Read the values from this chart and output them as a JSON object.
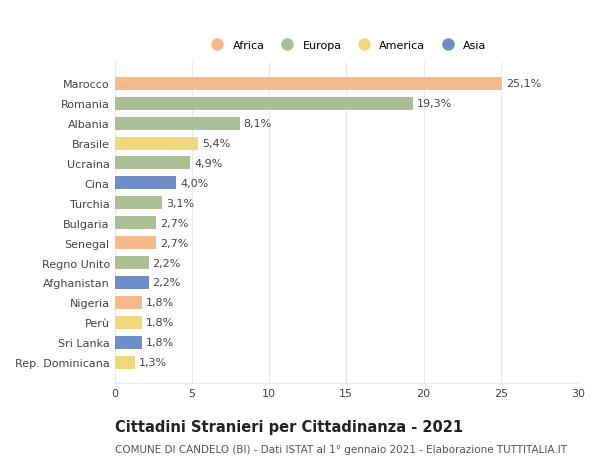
{
  "countries": [
    "Marocco",
    "Romania",
    "Albania",
    "Brasile",
    "Ucraina",
    "Cina",
    "Turchia",
    "Bulgaria",
    "Senegal",
    "Regno Unito",
    "Afghanistan",
    "Nigeria",
    "Perù",
    "Sri Lanka",
    "Rep. Dominicana"
  ],
  "values": [
    25.1,
    19.3,
    8.1,
    5.4,
    4.9,
    4.0,
    3.1,
    2.7,
    2.7,
    2.2,
    2.2,
    1.8,
    1.8,
    1.8,
    1.3
  ],
  "labels": [
    "25,1%",
    "19,3%",
    "8,1%",
    "5,4%",
    "4,9%",
    "4,0%",
    "3,1%",
    "2,7%",
    "2,7%",
    "2,2%",
    "2,2%",
    "1,8%",
    "1,8%",
    "1,8%",
    "1,3%"
  ],
  "continents": [
    "Africa",
    "Europa",
    "Europa",
    "America",
    "Europa",
    "Asia",
    "Europa",
    "Europa",
    "Africa",
    "Europa",
    "Asia",
    "Africa",
    "America",
    "Asia",
    "America"
  ],
  "continent_colors": {
    "Africa": "#F5B98A",
    "Europa": "#ABBE96",
    "America": "#F0D87A",
    "Asia": "#6E8EC8"
  },
  "legend_order": [
    "Africa",
    "Europa",
    "America",
    "Asia"
  ],
  "title": "Cittadini Stranieri per Cittadinanza - 2021",
  "subtitle": "COMUNE DI CANDELO (BI) - Dati ISTAT al 1° gennaio 2021 - Elaborazione TUTTITALIA.IT",
  "xlim": [
    0,
    30
  ],
  "xticks": [
    0,
    5,
    10,
    15,
    20,
    25,
    30
  ],
  "background_color": "#ffffff",
  "grid_color": "#e8e8e8",
  "bar_height": 0.65,
  "label_fontsize": 8.0,
  "tick_fontsize": 8.0,
  "title_fontsize": 10.5,
  "subtitle_fontsize": 7.5
}
